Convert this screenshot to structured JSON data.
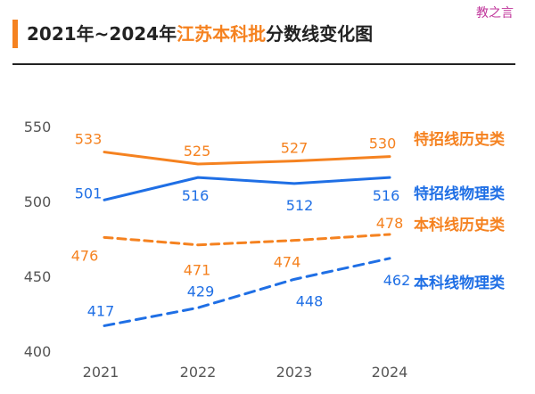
{
  "header": {
    "title_prefix": "2021年~2024年",
    "title_highlight": "江苏本科批",
    "title_suffix": "分数线变化图",
    "watermark": "教之言"
  },
  "colors": {
    "orange": "#f58220",
    "blue": "#1f6fe5",
    "axis_text": "#555555"
  },
  "chart_data": {
    "type": "line",
    "title": "2021年~2024年江苏本科批分数线变化图",
    "xlabel": "",
    "ylabel": "",
    "categories": [
      "2021",
      "2022",
      "2023",
      "2024"
    ],
    "yticks": [
      550,
      500,
      450,
      400
    ],
    "ylim": [
      400,
      550
    ],
    "grid": false,
    "legend_placement": "right, inline labels",
    "series": [
      {
        "name": "特招线历史类",
        "values": [
          533,
          525,
          527,
          530
        ],
        "color": "#f58220",
        "style": "solid"
      },
      {
        "name": "特招线物理类",
        "values": [
          501,
          516,
          512,
          516
        ],
        "color": "#1f6fe5",
        "style": "solid"
      },
      {
        "name": "本科线历史类",
        "values": [
          476,
          471,
          474,
          478
        ],
        "color": "#f58220",
        "style": "dashed"
      },
      {
        "name": "本科线物理类",
        "values": [
          417,
          429,
          448,
          462
        ],
        "color": "#1f6fe5",
        "style": "dashed"
      }
    ]
  }
}
